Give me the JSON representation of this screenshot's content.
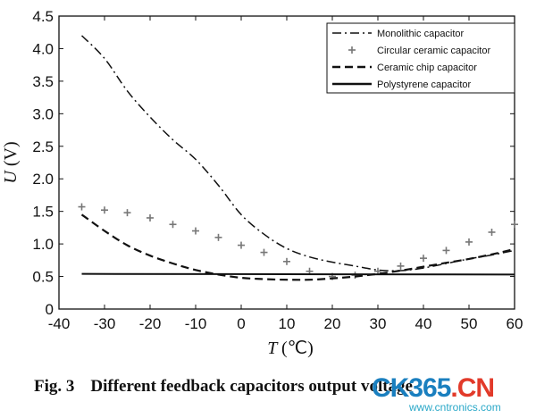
{
  "chart_data": {
    "type": "line",
    "title": "",
    "xlabel": "T",
    "xlabel_unit": "(℃)",
    "ylabel": "U",
    "ylabel_unit": "(V)",
    "xlim": [
      -40,
      60
    ],
    "ylim": [
      0,
      4.5
    ],
    "xticks": [
      -40,
      -30,
      -20,
      -10,
      0,
      10,
      20,
      30,
      40,
      50,
      60
    ],
    "yticks": [
      0,
      0.5,
      1.0,
      1.5,
      2.0,
      2.5,
      3.0,
      3.5,
      4.0,
      4.5
    ],
    "xtick_labels": [
      "-40",
      "-30",
      "-20",
      "-10",
      "0",
      "10",
      "20",
      "30",
      "40",
      "50",
      "60"
    ],
    "ytick_labels": [
      "0",
      "0.5",
      "1.0",
      "1.5",
      "2.0",
      "2.5",
      "3.0",
      "3.5",
      "4.0",
      "4.5"
    ],
    "grid": false,
    "legend_position": "top-right",
    "series": [
      {
        "name": "Monolithic capacitor",
        "style": "dash-dot",
        "color": "#111111",
        "x": [
          -35,
          -30,
          -25,
          -20,
          -15,
          -10,
          -5,
          0,
          5,
          10,
          15,
          20,
          25,
          30,
          35,
          40,
          45,
          50,
          55,
          60
        ],
        "y": [
          4.2,
          3.85,
          3.35,
          2.95,
          2.6,
          2.3,
          1.9,
          1.45,
          1.15,
          0.93,
          0.8,
          0.72,
          0.66,
          0.6,
          0.59,
          0.63,
          0.7,
          0.77,
          0.83,
          0.9
        ]
      },
      {
        "name": "Circular ceramic capacitor",
        "style": "plus-markers",
        "color": "#777777",
        "x": [
          -35,
          -30,
          -25,
          -20,
          -15,
          -10,
          -5,
          0,
          5,
          10,
          15,
          20,
          25,
          30,
          35,
          40,
          45,
          50,
          55,
          60
        ],
        "y": [
          1.57,
          1.52,
          1.48,
          1.4,
          1.3,
          1.2,
          1.1,
          0.98,
          0.87,
          0.73,
          0.58,
          0.5,
          0.52,
          0.58,
          0.66,
          0.78,
          0.9,
          1.03,
          1.18,
          1.3
        ]
      },
      {
        "name": "Ceramic chip capacitor",
        "style": "dashed",
        "color": "#111111",
        "x": [
          -35,
          -30,
          -25,
          -20,
          -15,
          -10,
          -5,
          0,
          5,
          10,
          15,
          20,
          25,
          30,
          35,
          40,
          45,
          50,
          55,
          60
        ],
        "y": [
          1.45,
          1.2,
          0.98,
          0.82,
          0.7,
          0.6,
          0.53,
          0.48,
          0.46,
          0.45,
          0.45,
          0.47,
          0.5,
          0.54,
          0.59,
          0.65,
          0.71,
          0.77,
          0.84,
          0.92
        ]
      },
      {
        "name": "Polystyrene capacitor",
        "style": "solid",
        "color": "#111111",
        "x": [
          -35,
          60
        ],
        "y": [
          0.54,
          0.53
        ]
      }
    ]
  },
  "caption": {
    "number": "Fig. 3",
    "text": "Different feedback capacitors output voltage"
  },
  "watermark": {
    "main_part1": "CK365",
    "main_dot": ".",
    "main_part2": "CN",
    "sub": "www.cntronics.com",
    "color_main": "#1a7fbf",
    "color_dot": "#e23a2a",
    "color_cn": "#e23a2a"
  }
}
